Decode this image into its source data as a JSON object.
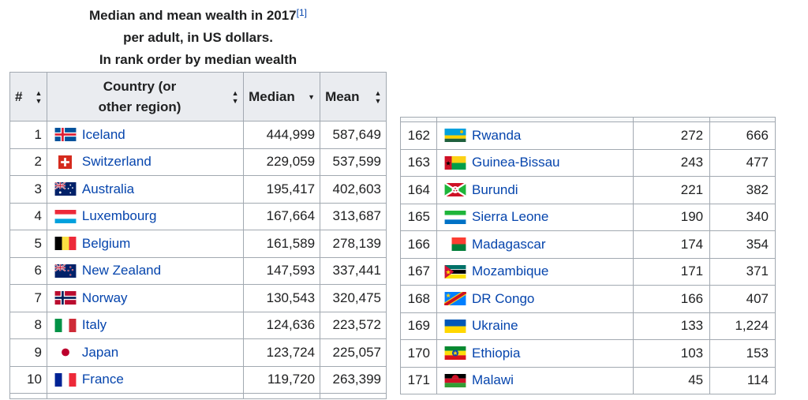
{
  "caption": {
    "line1": "Median and mean wealth in 2017",
    "ref": "[1]",
    "line2": "per adult, in US dollars.",
    "line3": "In rank order by median wealth"
  },
  "headers": {
    "rank": "#",
    "country_line1": "Country (or",
    "country_line2": "other region)",
    "median": "Median",
    "mean": "Mean",
    "sort_both": "▲▼",
    "sort_down": "▼"
  },
  "top_rows": [
    {
      "rank": "1",
      "country": "Iceland",
      "median": "444,999",
      "mean": "587,649",
      "flag": "iceland-flag"
    },
    {
      "rank": "2",
      "country": "Switzerland",
      "median": "229,059",
      "mean": "537,599",
      "flag": "switzerland-flag"
    },
    {
      "rank": "3",
      "country": "Australia",
      "median": "195,417",
      "mean": "402,603",
      "flag": "australia-flag"
    },
    {
      "rank": "4",
      "country": "Luxembourg",
      "median": "167,664",
      "mean": "313,687",
      "flag": "luxembourg-flag"
    },
    {
      "rank": "5",
      "country": "Belgium",
      "median": "161,589",
      "mean": "278,139",
      "flag": "belgium-flag"
    },
    {
      "rank": "6",
      "country": "New Zealand",
      "median": "147,593",
      "mean": "337,441",
      "flag": "new-zealand-flag"
    },
    {
      "rank": "7",
      "country": "Norway",
      "median": "130,543",
      "mean": "320,475",
      "flag": "norway-flag"
    },
    {
      "rank": "8",
      "country": "Italy",
      "median": "124,636",
      "mean": "223,572",
      "flag": "italy-flag"
    },
    {
      "rank": "9",
      "country": "Japan",
      "median": "123,724",
      "mean": "225,057",
      "flag": "japan-flag"
    },
    {
      "rank": "10",
      "country": "France",
      "median": "119,720",
      "mean": "263,399",
      "flag": "france-flag"
    }
  ],
  "bottom_rows": [
    {
      "rank": "162",
      "country": "Rwanda",
      "median": "272",
      "mean": "666",
      "flag": "rwanda-flag"
    },
    {
      "rank": "163",
      "country": "Guinea-Bissau",
      "median": "243",
      "mean": "477",
      "flag": "guinea-bissau-flag"
    },
    {
      "rank": "164",
      "country": "Burundi",
      "median": "221",
      "mean": "382",
      "flag": "burundi-flag"
    },
    {
      "rank": "165",
      "country": "Sierra Leone",
      "median": "190",
      "mean": "340",
      "flag": "sierra-leone-flag"
    },
    {
      "rank": "166",
      "country": "Madagascar",
      "median": "174",
      "mean": "354",
      "flag": "madagascar-flag"
    },
    {
      "rank": "167",
      "country": "Mozambique",
      "median": "171",
      "mean": "371",
      "flag": "mozambique-flag"
    },
    {
      "rank": "168",
      "country": "DR Congo",
      "median": "166",
      "mean": "407",
      "flag": "dr-congo-flag"
    },
    {
      "rank": "169",
      "country": "Ukraine",
      "median": "133",
      "mean": "1,224",
      "flag": "ukraine-flag"
    },
    {
      "rank": "170",
      "country": "Ethiopia",
      "median": "103",
      "mean": "153",
      "flag": "ethiopia-flag"
    },
    {
      "rank": "171",
      "country": "Malawi",
      "median": "45",
      "mean": "114",
      "flag": "malawi-flag"
    }
  ],
  "colors": {
    "link": "#0645ad",
    "header_bg": "#eaecf0",
    "border": "#a2a9b1"
  }
}
